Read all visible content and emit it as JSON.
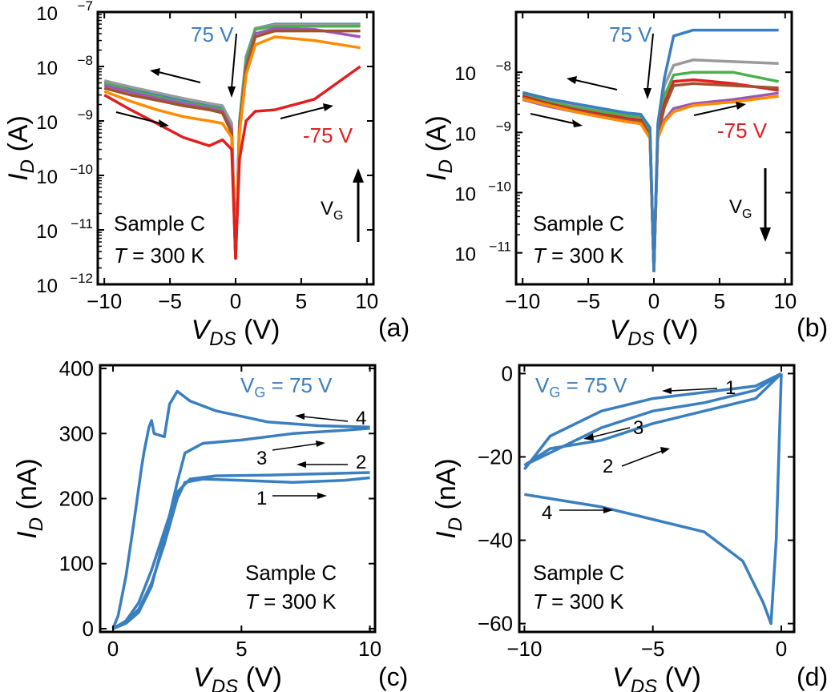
{
  "colors": {
    "blue": "#3a7fbf",
    "gray": "#9a9a9a",
    "green": "#4caf50",
    "brown": "#a0522d",
    "purple": "#9b59b6",
    "orange": "#ff8c00",
    "red": "#e02020",
    "axis": "#000000"
  },
  "chart_data": [
    {
      "panel": "(a)",
      "type": "line",
      "yscale": "log",
      "xlabel": "V_DS (V)",
      "ylabel": "I_D (A)",
      "xlim": [
        -10.5,
        10.5
      ],
      "ylim": [
        1e-12,
        1e-07
      ],
      "xticks": [
        "−10",
        "−5",
        "0",
        "5",
        "10"
      ],
      "yticks_exp": [
        "−7",
        "−8",
        "−9",
        "−10",
        "−11",
        "−12"
      ],
      "annotations": {
        "vg_high": "75 V",
        "vg_low": "-75 V",
        "sample": "Sample C",
        "temp_prefix": "T",
        "temp_value": " = 300 K",
        "vg_arrow": "V",
        "vg_arrow_sub": "G"
      },
      "series": [
        {
          "color_key": "blue",
          "x": [
            -10,
            -8,
            -6,
            -4,
            -2,
            -1,
            -0.3,
            0,
            0.3,
            0.8,
            1.5,
            3,
            6,
            9.5
          ],
          "y": [
            5e-09,
            3.8e-09,
            3e-09,
            2.4e-09,
            1.9e-09,
            1.7e-09,
            8e-10,
            3e-12,
            1e-09,
            1.5e-08,
            5e-08,
            6e-08,
            6e-08,
            6e-08
          ]
        },
        {
          "color_key": "gray",
          "x": [
            -10,
            -8,
            -6,
            -4,
            -2,
            -1,
            -0.3,
            0,
            0.3,
            0.8,
            1.5,
            3,
            6,
            9.5
          ],
          "y": [
            5.5e-09,
            4.2e-09,
            3.3e-09,
            2.6e-09,
            2.1e-09,
            1.9e-09,
            9e-10,
            3e-12,
            1e-09,
            1.4e-08,
            5e-08,
            5.8e-08,
            5.8e-08,
            5.8e-08
          ]
        },
        {
          "color_key": "green",
          "x": [
            -10,
            -8,
            -6,
            -4,
            -2,
            -1,
            -0.3,
            0,
            0.3,
            0.8,
            1.5,
            3,
            6,
            9.5
          ],
          "y": [
            5e-09,
            3.6e-09,
            2.8e-09,
            2.2e-09,
            1.8e-09,
            1.6e-09,
            7e-10,
            3e-12,
            9e-10,
            1.3e-08,
            4.8e-08,
            5.5e-08,
            5.5e-08,
            5.5e-08
          ]
        },
        {
          "color_key": "purple",
          "x": [
            -10,
            -8,
            -6,
            -4,
            -2,
            -1,
            -0.3,
            0,
            0.3,
            0.8,
            1.5,
            3,
            6,
            9.5
          ],
          "y": [
            4.5e-09,
            3.4e-09,
            2.6e-09,
            2.1e-09,
            1.7e-09,
            1.5e-09,
            7e-10,
            3e-12,
            8e-10,
            1e-08,
            4e-08,
            5e-08,
            4.8e-08,
            3.5e-08
          ]
        },
        {
          "color_key": "brown",
          "x": [
            -10,
            -8,
            -6,
            -4,
            -2,
            -1,
            -0.3,
            0,
            0.3,
            0.8,
            1.5,
            3,
            6,
            9.5
          ],
          "y": [
            4e-09,
            3e-09,
            2.4e-09,
            1.9e-09,
            1.6e-09,
            1.4e-09,
            6e-10,
            3e-12,
            8e-10,
            9e-09,
            3.5e-08,
            4.5e-08,
            4.5e-08,
            4.5e-08
          ]
        },
        {
          "color_key": "orange",
          "x": [
            -10,
            -8,
            -6,
            -4,
            -2,
            -1,
            -0.3,
            0,
            0.3,
            0.8,
            1.5,
            3,
            6,
            9.5
          ],
          "y": [
            3.5e-09,
            2.3e-09,
            1.6e-09,
            1.2e-09,
            1e-09,
            9e-10,
            5e-10,
            3e-12,
            6e-10,
            7e-09,
            2.5e-08,
            3.5e-08,
            3e-08,
            2.2e-08
          ]
        },
        {
          "color_key": "red",
          "x": [
            -10,
            -8,
            -6,
            -4,
            -2,
            -1,
            -0.3,
            0,
            0.3,
            0.8,
            1.5,
            3,
            6,
            9.5
          ],
          "y": [
            3e-09,
            1.6e-09,
            9e-10,
            5e-10,
            3.5e-10,
            4.5e-10,
            3e-10,
            3e-12,
            2e-10,
            1e-09,
            1.5e-09,
            1.6e-09,
            2.5e-09,
            1e-08
          ]
        }
      ]
    },
    {
      "panel": "(b)",
      "type": "line",
      "yscale": "log",
      "xlabel": "V_DS (V)",
      "ylabel": "I_D (A)",
      "xlim": [
        -10.5,
        10.5
      ],
      "ylim": [
        3e-12,
        1e-07
      ],
      "xticks": [
        "−10",
        "−5",
        "0",
        "5",
        "10"
      ],
      "yticks_exp": [
        "−8",
        "−9",
        "−10",
        "−11"
      ],
      "annotations": {
        "vg_high": "75 V",
        "vg_low": "-75 V",
        "sample": "Sample C",
        "temp_prefix": "T",
        "temp_value": " = 300 K",
        "vg_arrow": "V",
        "vg_arrow_sub": "G"
      },
      "series": [
        {
          "color_key": "gray",
          "x": [
            -10,
            -8,
            -6,
            -4,
            -2,
            -1,
            -0.3,
            0,
            0.3,
            0.8,
            1.5,
            3,
            6,
            9.5
          ],
          "y": [
            4.5e-09,
            3.5e-09,
            2.8e-09,
            2.4e-09,
            2.1e-09,
            2e-09,
            1.2e-09,
            5e-12,
            1.3e-09,
            6e-09,
            1.3e-08,
            1.6e-08,
            1.5e-08,
            1.4e-08
          ]
        },
        {
          "color_key": "green",
          "x": [
            -10,
            -8,
            -6,
            -4,
            -2,
            -1,
            -0.3,
            0,
            0.3,
            0.8,
            1.5,
            3,
            6,
            9.5
          ],
          "y": [
            4.2e-09,
            3.2e-09,
            2.6e-09,
            2.2e-09,
            1.9e-09,
            1.8e-09,
            1e-09,
            5e-12,
            1.1e-09,
            4e-09,
            9e-09,
            1e-08,
            1e-08,
            7e-09
          ]
        },
        {
          "color_key": "red",
          "x": [
            -10,
            -8,
            -6,
            -4,
            -2,
            -1,
            -0.3,
            0,
            0.3,
            0.8,
            1.5,
            3,
            6,
            9.5
          ],
          "y": [
            4e-09,
            3e-09,
            2.4e-09,
            2e-09,
            1.7e-09,
            1.6e-09,
            9e-10,
            5e-12,
            1e-09,
            3e-09,
            7e-09,
            7.5e-09,
            6.5e-09,
            5e-09
          ]
        },
        {
          "color_key": "brown",
          "x": [
            -10,
            -8,
            -6,
            -4,
            -2,
            -1,
            -0.3,
            0,
            0.3,
            0.8,
            1.5,
            3,
            6,
            9.5
          ],
          "y": [
            3.8e-09,
            2.9e-09,
            2.3e-09,
            1.9e-09,
            1.6e-09,
            1.5e-09,
            9e-10,
            5e-12,
            9e-10,
            2.6e-09,
            6e-09,
            6.5e-09,
            6e-09,
            5.5e-09
          ]
        },
        {
          "color_key": "purple",
          "x": [
            -10,
            -8,
            -6,
            -4,
            -2,
            -1,
            -0.3,
            0,
            0.3,
            0.8,
            1.5,
            3,
            6,
            9.5
          ],
          "y": [
            3.5e-09,
            2.7e-09,
            2.2e-09,
            1.8e-09,
            1.5e-09,
            1.4e-09,
            8e-10,
            5e-12,
            8e-10,
            1.6e-09,
            2.5e-09,
            3e-09,
            3.5e-09,
            4.5e-09
          ]
        },
        {
          "color_key": "orange",
          "x": [
            -10,
            -8,
            -6,
            -4,
            -2,
            -1,
            -0.3,
            0,
            0.3,
            0.8,
            1.5,
            3,
            6,
            9.5
          ],
          "y": [
            3.6e-09,
            2.8e-09,
            2.2e-09,
            1.8e-09,
            1.5e-09,
            1.4e-09,
            8e-10,
            5e-12,
            8e-10,
            1.5e-09,
            2.2e-09,
            2.8e-09,
            3.2e-09,
            4e-09
          ]
        },
        {
          "color_key": "blue",
          "x": [
            -10,
            -8,
            -6,
            -4,
            -2,
            -1,
            -0.3,
            0,
            0.3,
            0.8,
            1.5,
            3,
            6,
            9.5
          ],
          "y": [
            4.6e-09,
            3.6e-09,
            3e-09,
            2.5e-09,
            2.1e-09,
            2e-09,
            1.2e-09,
            5e-12,
            1.4e-09,
            8e-09,
            4e-08,
            5e-08,
            5e-08,
            5e-08
          ]
        }
      ]
    },
    {
      "panel": "(c)",
      "type": "line",
      "yscale": "linear",
      "xlabel": "V_DS (V)",
      "ylabel": "I_D (nA)",
      "xlim": [
        -0.5,
        10.2
      ],
      "ylim": [
        -5,
        405
      ],
      "xticks": [
        "0",
        "5",
        "10"
      ],
      "yticks": [
        "0",
        "100",
        "200",
        "300",
        "400"
      ],
      "annotations": {
        "vg_label": "V",
        "vg_sub": "G",
        "vg_value": " = 75 V",
        "sample": "Sample C",
        "temp_prefix": "T",
        "temp_value": " = 300 K",
        "sweeps": [
          "1",
          "2",
          "3",
          "4"
        ]
      },
      "series": [
        {
          "color_key": "blue",
          "x": [
            0,
            0.5,
            1,
            1.5,
            2,
            2.5,
            2.8,
            3.5,
            5,
            7,
            9,
            10
          ],
          "y": [
            0,
            10,
            30,
            70,
            130,
            200,
            225,
            230,
            228,
            225,
            228,
            232
          ]
        },
        {
          "color_key": "blue",
          "x": [
            10,
            8,
            6,
            4,
            3,
            2.5,
            2,
            1.5,
            1,
            0.5,
            0
          ],
          "y": [
            240,
            238,
            236,
            235,
            230,
            210,
            150,
            90,
            40,
            12,
            0
          ]
        },
        {
          "color_key": "blue",
          "x": [
            0,
            0.5,
            1,
            1.5,
            2,
            2.5,
            2.8,
            3.5,
            5,
            7,
            9,
            10
          ],
          "y": [
            0,
            8,
            25,
            65,
            140,
            225,
            270,
            285,
            290,
            300,
            305,
            308
          ]
        },
        {
          "color_key": "blue",
          "x": [
            10,
            8,
            6,
            4,
            3,
            2.5,
            2.2,
            2,
            1.6,
            1.5,
            1.4,
            1.2,
            1.1,
            0.8,
            0.5,
            0.2,
            0
          ],
          "y": [
            310,
            312,
            318,
            335,
            350,
            365,
            345,
            295,
            300,
            320,
            310,
            270,
            245,
            160,
            80,
            20,
            0
          ]
        }
      ]
    },
    {
      "panel": "(d)",
      "type": "line",
      "yscale": "linear",
      "xlabel": "V_DS (V)",
      "ylabel": "I_D (nA)",
      "xlim": [
        -10.2,
        0.5
      ],
      "ylim": [
        -62,
        2
      ],
      "xticks": [
        "−10",
        "−5",
        "0"
      ],
      "yticks": [
        "0",
        "−20",
        "−40",
        "−60"
      ],
      "annotations": {
        "vg_label": "V",
        "vg_sub": "G",
        "vg_value": " = 75 V",
        "sample": "Sample C",
        "temp_prefix": "T",
        "temp_value": " = 300 K",
        "sweeps": [
          "1",
          "2",
          "3",
          "4"
        ]
      },
      "series": [
        {
          "color_key": "blue",
          "x": [
            0,
            -1,
            -3,
            -5,
            -7,
            -9,
            -10
          ],
          "y": [
            0,
            -3,
            -4.5,
            -6,
            -9,
            -15,
            -23
          ]
        },
        {
          "color_key": "blue",
          "x": [
            -10,
            -9,
            -7,
            -5,
            -3,
            -1,
            0
          ],
          "y": [
            -22,
            -18,
            -16,
            -12,
            -9,
            -6,
            0
          ]
        },
        {
          "color_key": "blue",
          "x": [
            0,
            -1,
            -3,
            -5,
            -7,
            -9,
            -10
          ],
          "y": [
            0,
            -4,
            -7,
            -9,
            -13,
            -19,
            -22
          ]
        },
        {
          "color_key": "blue",
          "x": [
            -10,
            -9,
            -7,
            -5,
            -3,
            -1.5,
            -0.7,
            -0.4,
            -0.2,
            0
          ],
          "y": [
            -29,
            -30,
            -32,
            -35,
            -38,
            -45,
            -55,
            -60,
            -40,
            0
          ]
        }
      ]
    }
  ],
  "panel_labels": [
    "(a)",
    "(b)",
    "(c)",
    "(d)"
  ]
}
